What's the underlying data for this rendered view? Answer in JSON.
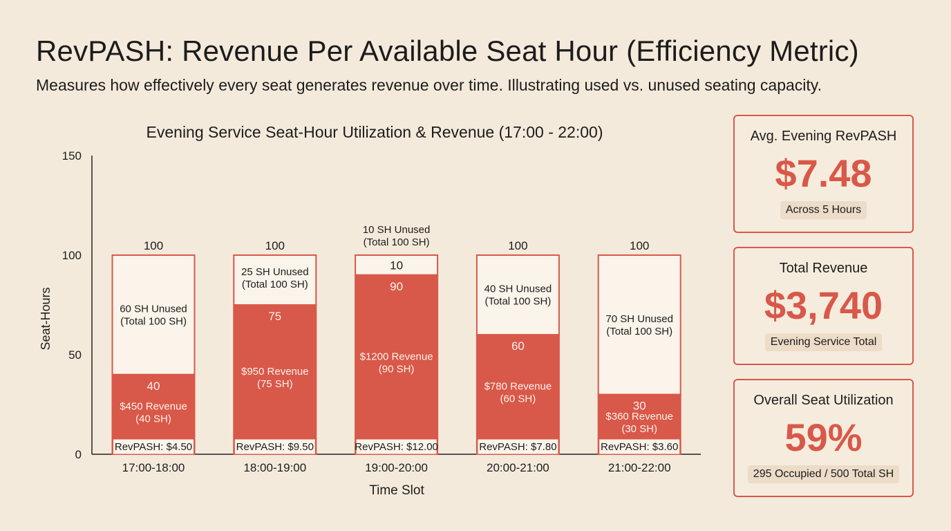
{
  "title": "RevPASH: Revenue Per Available Seat Hour (Efficiency Metric)",
  "subtitle": "Measures how effectively every seat generates revenue over time. Illustrating used vs. unused seating capacity.",
  "colors": {
    "accent": "#d8584a",
    "background": "#f4eadb",
    "badge": "#ecdcc8"
  },
  "chart_data": {
    "type": "bar",
    "stacked": true,
    "title": "Evening Service Seat-Hour Utilization & Revenue (17:00 - 22:00)",
    "xlabel": "Time Slot",
    "ylabel": "Seat-Hours",
    "ylim": [
      0,
      150
    ],
    "yticks": [
      0,
      50,
      100,
      150
    ],
    "categories": [
      "17:00-18:00",
      "18:00-19:00",
      "19:00-20:00",
      "20:00-21:00",
      "21:00-22:00"
    ],
    "series": [
      {
        "name": "Occupied",
        "values": [
          40,
          75,
          90,
          60,
          30
        ]
      },
      {
        "name": "Unused",
        "values": [
          60,
          25,
          10,
          40,
          70
        ]
      }
    ],
    "totals": [
      100,
      100,
      100,
      100,
      100
    ],
    "total_labels": [
      "100",
      "100",
      "",
      "100",
      "100"
    ],
    "occupied_labels": [
      "40",
      "75",
      "90",
      "60",
      "30"
    ],
    "unused_count_labels": [
      "",
      "",
      "10",
      "",
      ""
    ],
    "revenue_line1": [
      "$450 Revenue",
      "$950 Revenue",
      "$1200 Revenue",
      "$780 Revenue",
      "$360 Revenue"
    ],
    "revenue_line2": [
      "(40 SH)",
      "(75 SH)",
      "(90 SH)",
      "(60 SH)",
      "(30 SH)"
    ],
    "unused_line1": [
      "60 SH Unused",
      "25 SH Unused",
      "10 SH Unused",
      "40 SH Unused",
      "70 SH Unused"
    ],
    "unused_line2": [
      "(Total 100 SH)",
      "(Total 100 SH)",
      "(Total 100 SH)",
      "(Total 100 SH)",
      "(Total 100 SH)"
    ],
    "revpash_labels": [
      "RevPASH: $4.50",
      "RevPASH: $9.50",
      "RevPASH: $12.00",
      "RevPASH: $7.80",
      "RevPASH: $3.60"
    ]
  },
  "cards": [
    {
      "label": "Avg. Evening RevPASH",
      "value": "$7.48",
      "badge": "Across 5 Hours"
    },
    {
      "label": "Total Revenue",
      "value": "$3,740",
      "badge": "Evening Service Total"
    },
    {
      "label": "Overall Seat Utilization",
      "value": "59%",
      "badge": "295 Occupied / 500 Total SH"
    }
  ]
}
